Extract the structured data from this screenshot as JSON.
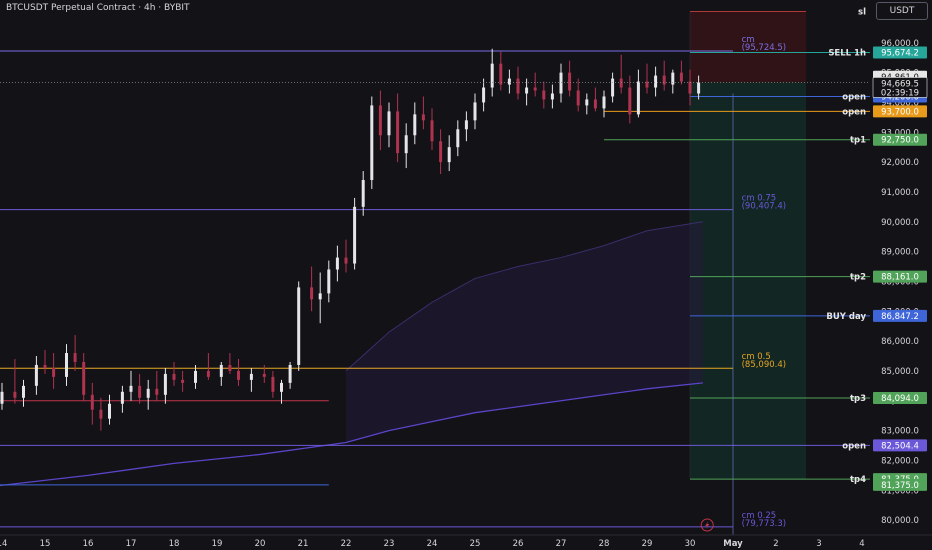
{
  "header": {
    "title": "BTCUSDT Perpetual Contract · 4h · BYBIT",
    "unit": "USDT"
  },
  "chart_data": {
    "type": "candlestick",
    "symbol": "BTCUSDT Perpetual Contract",
    "interval": "4h",
    "exchange": "BYBIT",
    "y_range": [
      79500,
      97300
    ],
    "y_ticks": [
      "96,000.0",
      "95,000.0",
      "94,000.0",
      "93,000.0",
      "92,000.0",
      "91,000.0",
      "90,000.0",
      "89,000.0",
      "88,000.0",
      "87,000.0",
      "86,000.0",
      "85,000.0",
      "84,000.0",
      "83,000.0",
      "82,000.0",
      "81,000.0",
      "80,000.0"
    ],
    "x_ticks": [
      "14",
      "15",
      "16",
      "17",
      "18",
      "19",
      "20",
      "21",
      "22",
      "23",
      "24",
      "25",
      "26",
      "27",
      "28",
      "29",
      "30",
      "May",
      "2",
      "3",
      "4"
    ],
    "current": {
      "price": "94,669.5",
      "countdown": "02:39:19",
      "high_label": "94,861.0",
      "value": 94669.5
    },
    "levels": [
      {
        "label": "sl",
        "price": null,
        "value": 97050,
        "color": "#b03a3a",
        "start_day": 30.0,
        "text_color": "#e6e6e6"
      },
      {
        "label": "cm",
        "price": "(95,724.5)",
        "value": 95724.5,
        "color": "#7b6fe6",
        "start_day": 13.5
      },
      {
        "label": "SELL 1h",
        "price": "95,674.2",
        "value": 95674.2,
        "color": "#26a69a",
        "start_day": 30.0
      },
      {
        "label": "open",
        "price": "94,200.0",
        "value": 94200,
        "color": "#3f66d9",
        "start_day": 30.0
      },
      {
        "label": "open",
        "price": "93,700.0",
        "value": 93700,
        "color": "#e89a1b",
        "start_day": 28.0
      },
      {
        "label": "tp1",
        "price": "92,750.0",
        "value": 92750,
        "color": "#51a35a",
        "start_day": 28.0
      },
      {
        "label": "cm 0.75",
        "price": "(90,407.4)",
        "value": 90407.4,
        "color": "#6b58d8",
        "start_day": 13.5
      },
      {
        "label": "tp2",
        "price": "88,161.0",
        "value": 88161,
        "color": "#51a35a",
        "start_day": 30.0
      },
      {
        "label": "BUY day",
        "price": "86,847.2",
        "value": 86847.2,
        "color": "#3f66d9",
        "start_day": 30.0
      },
      {
        "label": "cm 0.5",
        "price": "(85,090.4)",
        "value": 85090.4,
        "color": "#e8a623",
        "start_day": 13.5
      },
      {
        "label": "tp3",
        "price": "84,094.0",
        "value": 84094,
        "color": "#51a35a",
        "start_day": 30.0
      },
      {
        "label": "open",
        "price": "82,504.4",
        "value": 82504.4,
        "color": "#6b58d8",
        "start_day": 13.5
      },
      {
        "label": "tp4",
        "price": "81,375.0",
        "value": 81375,
        "color": "#51a35a",
        "start_day": 30.0
      },
      {
        "label": "cm 0.25",
        "price": "(79,773.3)",
        "value": 79773.3,
        "color": "#6b58d8",
        "start_day": 13.5
      }
    ],
    "extra_price_tags": [
      {
        "price": "81,375.0",
        "value": 81180,
        "color": "#51a35a"
      }
    ],
    "candles": [
      [
        13.8,
        84700,
        85100,
        83600,
        83900
      ],
      [
        14.0,
        83900,
        84600,
        83700,
        84300
      ],
      [
        14.3,
        84300,
        85400,
        83900,
        84100
      ],
      [
        14.5,
        84100,
        84700,
        83800,
        84500
      ],
      [
        14.8,
        84500,
        85500,
        84200,
        85200
      ],
      [
        15.0,
        85200,
        85700,
        84900,
        85100
      ],
      [
        15.2,
        85100,
        85600,
        84400,
        84800
      ],
      [
        15.5,
        84800,
        85900,
        84500,
        85600
      ],
      [
        15.7,
        85600,
        86200,
        85000,
        85300
      ],
      [
        15.9,
        85300,
        85600,
        84000,
        84200
      ],
      [
        16.1,
        84200,
        84600,
        83200,
        83700
      ],
      [
        16.3,
        83700,
        84100,
        83000,
        83400
      ],
      [
        16.5,
        83400,
        84200,
        83200,
        83900
      ],
      [
        16.8,
        83900,
        84500,
        83600,
        84300
      ],
      [
        17.0,
        84300,
        85000,
        84000,
        84500
      ],
      [
        17.2,
        84500,
        84900,
        83900,
        84100
      ],
      [
        17.4,
        84100,
        84700,
        83700,
        84400
      ],
      [
        17.6,
        84400,
        85000,
        84000,
        84200
      ],
      [
        17.8,
        84200,
        85100,
        83900,
        84900
      ],
      [
        18.0,
        84900,
        85300,
        84500,
        84700
      ],
      [
        18.2,
        84700,
        85000,
        84300,
        84600
      ],
      [
        18.5,
        84600,
        85200,
        84400,
        85000
      ],
      [
        18.8,
        85000,
        85600,
        84700,
        84800
      ],
      [
        19.1,
        84800,
        85300,
        84500,
        85200
      ],
      [
        19.3,
        85200,
        85600,
        84900,
        85000
      ],
      [
        19.5,
        85000,
        85400,
        84500,
        84700
      ],
      [
        19.8,
        84700,
        85100,
        84300,
        84900
      ],
      [
        20.1,
        84900,
        85200,
        84600,
        84800
      ],
      [
        20.3,
        84800,
        85000,
        84100,
        84300
      ],
      [
        20.5,
        84300,
        84700,
        83900,
        84600
      ],
      [
        20.7,
        84600,
        85300,
        84400,
        85200
      ],
      [
        20.9,
        85200,
        88000,
        85000,
        87800
      ],
      [
        21.2,
        87800,
        88500,
        87000,
        87400
      ],
      [
        21.4,
        87400,
        88300,
        86600,
        87600
      ],
      [
        21.6,
        87600,
        88700,
        87300,
        88400
      ],
      [
        21.8,
        88400,
        89200,
        88000,
        88800
      ],
      [
        22.0,
        88800,
        89400,
        88300,
        88600
      ],
      [
        22.2,
        88600,
        90800,
        88400,
        90500
      ],
      [
        22.4,
        90500,
        91700,
        90200,
        91400
      ],
      [
        22.6,
        91400,
        94200,
        91100,
        93900
      ],
      [
        22.8,
        93900,
        94400,
        92400,
        92900
      ],
      [
        23.0,
        92900,
        94000,
        92500,
        93700
      ],
      [
        23.2,
        93700,
        94300,
        92000,
        92300
      ],
      [
        23.4,
        92300,
        93300,
        91800,
        92900
      ],
      [
        23.6,
        92900,
        94000,
        92600,
        93600
      ],
      [
        23.8,
        93600,
        94200,
        93100,
        93400
      ],
      [
        24.0,
        93400,
        93800,
        92400,
        92700
      ],
      [
        24.2,
        92700,
        93100,
        91600,
        92000
      ],
      [
        24.4,
        92000,
        92900,
        91700,
        92500
      ],
      [
        24.6,
        92500,
        93400,
        92200,
        93100
      ],
      [
        24.8,
        93100,
        93700,
        92700,
        93400
      ],
      [
        25.0,
        93400,
        94300,
        93100,
        94000
      ],
      [
        25.2,
        94000,
        94800,
        93700,
        94500
      ],
      [
        25.4,
        94500,
        95800,
        94200,
        95300
      ],
      [
        25.6,
        95300,
        95700,
        94400,
        94600
      ],
      [
        25.8,
        94600,
        95100,
        94300,
        94800
      ],
      [
        26.0,
        94800,
        95200,
        94100,
        94300
      ],
      [
        26.2,
        94300,
        94800,
        93900,
        94500
      ],
      [
        26.4,
        94500,
        95000,
        94200,
        94400
      ],
      [
        26.6,
        94400,
        94700,
        93800,
        94100
      ],
      [
        26.8,
        94100,
        94600,
        93800,
        94300
      ],
      [
        27.0,
        94300,
        95300,
        94000,
        95000
      ],
      [
        27.2,
        95000,
        95400,
        94200,
        94400
      ],
      [
        27.4,
        94400,
        94800,
        93700,
        93900
      ],
      [
        27.6,
        93900,
        94300,
        93600,
        94100
      ],
      [
        27.8,
        94100,
        94500,
        93700,
        93800
      ],
      [
        28.0,
        93800,
        94400,
        93500,
        94200
      ],
      [
        28.2,
        94200,
        95000,
        94000,
        94800
      ],
      [
        28.4,
        94800,
        95600,
        94300,
        94500
      ],
      [
        28.6,
        94500,
        94900,
        93300,
        93600
      ],
      [
        28.8,
        93600,
        95100,
        93500,
        94700
      ],
      [
        29.0,
        94700,
        95300,
        94300,
        94500
      ],
      [
        29.2,
        94500,
        95200,
        94200,
        94900
      ],
      [
        29.4,
        94900,
        95400,
        94400,
        94600
      ],
      [
        29.6,
        94600,
        95100,
        94300,
        95000
      ],
      [
        29.8,
        95000,
        95400,
        94600,
        94700
      ],
      [
        30.0,
        94700,
        95100,
        93900,
        94300
      ],
      [
        30.2,
        94300,
        94900,
        94100,
        94669.5
      ]
    ],
    "vwap_upper": [
      [
        22.0,
        85000
      ],
      [
        23.0,
        86300
      ],
      [
        24.0,
        87300
      ],
      [
        25.0,
        88100
      ],
      [
        26.0,
        88500
      ],
      [
        27.0,
        88800
      ],
      [
        28.0,
        89200
      ],
      [
        29.0,
        89700
      ],
      [
        30.3,
        90000
      ]
    ],
    "vwap_lower": [
      [
        13.6,
        81100
      ],
      [
        16.0,
        81500
      ],
      [
        18.0,
        81900
      ],
      [
        20.0,
        82200
      ],
      [
        22.0,
        82600
      ],
      [
        23.0,
        83000
      ],
      [
        24.0,
        83300
      ],
      [
        25.0,
        83600
      ],
      [
        26.0,
        83800
      ],
      [
        27.0,
        84000
      ],
      [
        28.0,
        84200
      ],
      [
        29.0,
        84400
      ],
      [
        30.3,
        84600
      ]
    ],
    "red_lines": [
      {
        "value": 84000,
        "from": 13.5,
        "to": 21.6
      }
    ],
    "blue_short_lines": [
      {
        "value": 81180,
        "from": 13.5,
        "to": 21.6
      }
    ],
    "colors": {
      "bg": "#131216",
      "bull": "#e6e6ea",
      "bear": "#b0334f",
      "axis_text": "#d6d6dc"
    }
  }
}
